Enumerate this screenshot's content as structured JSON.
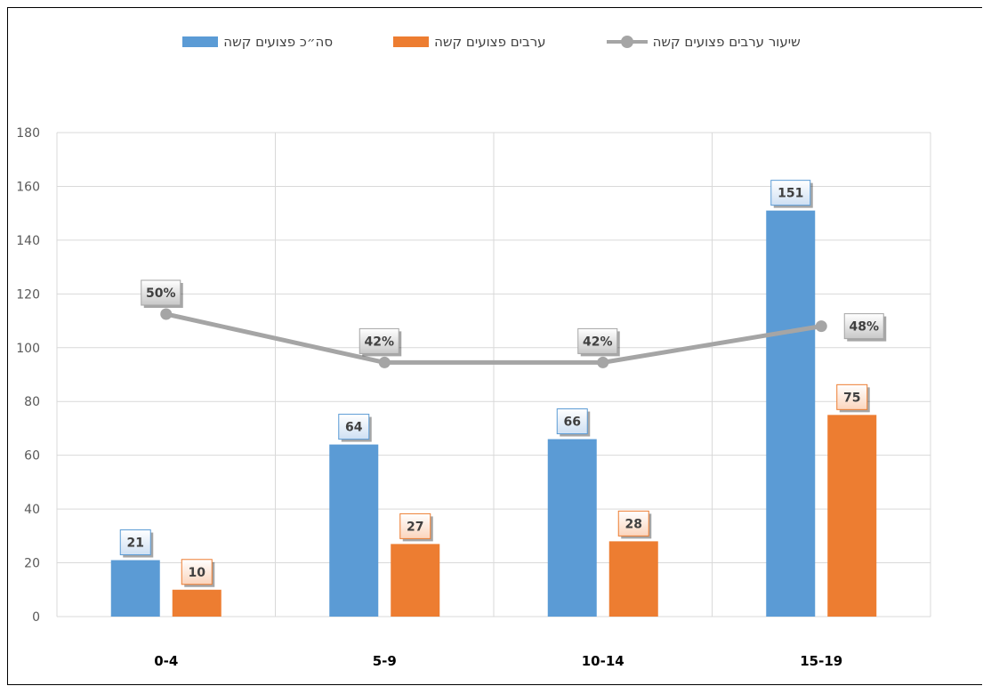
{
  "chart_data": {
    "type": "bar",
    "categories": [
      "0-4",
      "5-9",
      "10-14",
      "15-19"
    ],
    "series": [
      {
        "name": "סה״כ פצועים קשה",
        "type": "bar",
        "color": "#5b9bd5",
        "values": [
          21,
          64,
          66,
          151
        ],
        "labels": [
          "21",
          "64",
          "66",
          "151"
        ]
      },
      {
        "name": "ערבים פצועים קשה",
        "type": "bar",
        "color": "#ed7d31",
        "values": [
          10,
          27,
          28,
          75
        ],
        "labels": [
          "10",
          "27",
          "28",
          "75"
        ]
      },
      {
        "name": "שיעור ערבים פצועים קשה",
        "type": "line",
        "color": "#a5a5a5",
        "values": [
          0.5,
          0.42,
          0.42,
          0.48
        ],
        "labels": [
          "50%",
          "42%",
          "42%",
          "48%"
        ]
      }
    ],
    "ylim": [
      0,
      180
    ],
    "yticks": [
      "0",
      "20",
      "40",
      "60",
      "80",
      "100",
      "120",
      "140",
      "160",
      "180"
    ],
    "grid": true,
    "legend_position": "top"
  }
}
